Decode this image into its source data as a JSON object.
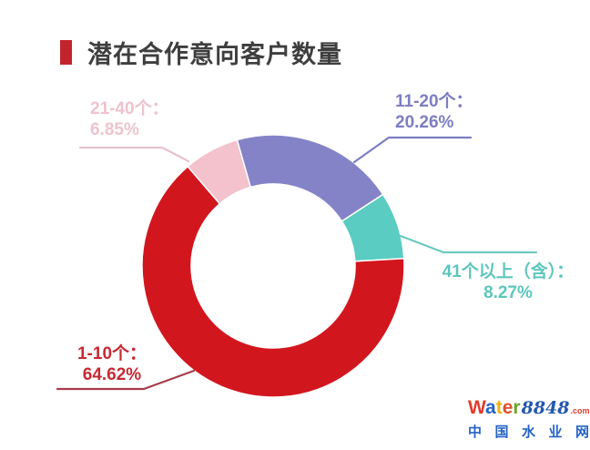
{
  "header": {
    "title": "潜在合作意向客户数量",
    "title_color": "#3e3e3e",
    "accent_color": "#c2242b"
  },
  "chart_data": {
    "type": "pie",
    "subtype": "donut",
    "title": "潜在合作意向客户数量",
    "legend_position": "outside-callouts",
    "start_angle_deg": -16,
    "slices": [
      {
        "label": "11-20个",
        "value": 20.26,
        "color": "#8583c7",
        "text_color": "#7d7ec3",
        "line_color": "#7d7ec3",
        "callout_line1": "11-20个：",
        "callout_line2": "20.26%"
      },
      {
        "label": "41个以上（含）",
        "value": 8.27,
        "color": "#5accc1",
        "text_color": "#5ec6bc",
        "line_color": "#6cc9c0",
        "callout_line1": "41个以上（含）：",
        "callout_line2": "8.27%"
      },
      {
        "label": "1-10个",
        "value": 64.62,
        "color": "#d2161e",
        "text_color": "#c62a33",
        "line_color": "#a63c4c",
        "callout_line1": "1-10个：",
        "callout_line2": "64.62%"
      },
      {
        "label": "21-40个",
        "value": 6.85,
        "color": "#f3c2cd",
        "text_color": "#eec3ce",
        "line_color": "#e6c4cd",
        "callout_line1": "21-40个：",
        "callout_line2": "6.85%"
      }
    ]
  },
  "watermark": {
    "brand_letters": [
      {
        "ch": "W",
        "color": "#e13b2c"
      },
      {
        "ch": "a",
        "color": "#2463c3"
      },
      {
        "ch": "t",
        "color": "#edb10f"
      },
      {
        "ch": "e",
        "color": "#e1502c"
      },
      {
        "ch": "r",
        "color": "#6aa52a"
      }
    ],
    "brand_suffix": "8848",
    "suffix_color": "#2458b0",
    "brand_tld": ".com",
    "tld_color": "#e13b2c",
    "subtitle": "中国水业网",
    "subtitle_color": "#2563c4"
  }
}
